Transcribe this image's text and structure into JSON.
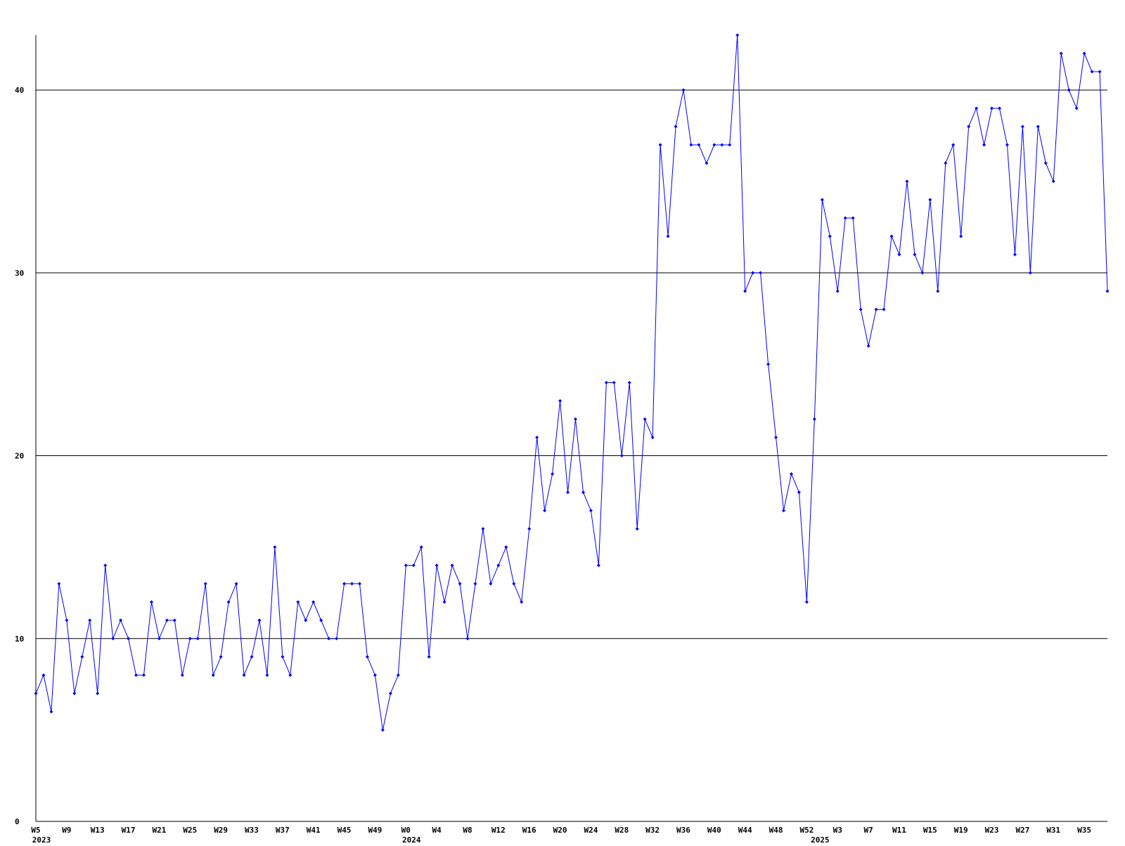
{
  "chart_data": {
    "type": "line",
    "categories": [
      "W5",
      null,
      null,
      null,
      "W9",
      null,
      null,
      null,
      "W13",
      null,
      null,
      null,
      "W17",
      null,
      null,
      null,
      "W21",
      null,
      null,
      null,
      "W25",
      null,
      null,
      null,
      "W29",
      null,
      null,
      null,
      "W33",
      null,
      null,
      null,
      "W37",
      null,
      null,
      null,
      "W41",
      null,
      null,
      null,
      "W45",
      null,
      null,
      null,
      "W49",
      null,
      null,
      null,
      "W0",
      null,
      null,
      null,
      "W4",
      null,
      null,
      null,
      "W8",
      null,
      null,
      null,
      "W12",
      null,
      null,
      null,
      "W16",
      null,
      null,
      null,
      "W20",
      null,
      null,
      null,
      "W24",
      null,
      null,
      null,
      "W28",
      null,
      null,
      null,
      "W32",
      null,
      null,
      null,
      "W36",
      null,
      null,
      null,
      "W40",
      null,
      null,
      null,
      "W44",
      null,
      null,
      null,
      "W48",
      null,
      null,
      null,
      "W52",
      null,
      null,
      null,
      "W3",
      null,
      null,
      null,
      "W7",
      null,
      null,
      null,
      "W11",
      null,
      null,
      null,
      "W15",
      null,
      null,
      null,
      "W19",
      null,
      null,
      null,
      "W23",
      null,
      null,
      null,
      "W27",
      null,
      null,
      null,
      "W31",
      null,
      null,
      null,
      "W35",
      null,
      null,
      null
    ],
    "category_years": [
      "2023",
      null,
      null,
      null,
      null,
      null,
      null,
      null,
      null,
      null,
      null,
      null,
      null,
      null,
      null,
      null,
      null,
      null,
      null,
      null,
      null,
      null,
      null,
      null,
      null,
      null,
      null,
      null,
      null,
      null,
      null,
      null,
      null,
      null,
      null,
      null,
      null,
      null,
      null,
      null,
      null,
      null,
      null,
      null,
      null,
      null,
      null,
      null,
      "2024",
      null,
      null,
      null,
      null,
      null,
      null,
      null,
      null,
      null,
      null,
      null,
      null,
      null,
      null,
      null,
      null,
      null,
      null,
      null,
      null,
      null,
      null,
      null,
      null,
      null,
      null,
      null,
      null,
      null,
      null,
      null,
      null,
      null,
      null,
      null,
      null,
      null,
      null,
      null,
      null,
      null,
      null,
      null,
      null,
      null,
      null,
      null,
      null,
      null,
      null,
      null,
      null,
      "2025",
      null,
      null,
      null,
      null,
      null,
      null,
      null,
      null,
      null,
      null,
      null,
      null,
      null,
      null,
      null,
      null,
      null,
      null,
      null,
      null,
      null,
      null,
      null,
      null,
      null,
      null,
      null,
      null,
      null,
      null,
      null,
      null,
      null,
      null,
      null,
      null,
      null,
      null
    ],
    "series": [
      {
        "color": "#0000ff",
        "values": [
          7,
          8,
          6,
          13,
          11,
          7,
          9,
          11,
          7,
          14,
          10,
          11,
          10,
          8,
          8,
          12,
          10,
          11,
          11,
          8,
          10,
          10,
          13,
          8,
          9,
          12,
          13,
          8,
          9,
          11,
          8,
          15,
          9,
          8,
          12,
          11,
          12,
          11,
          10,
          10,
          13,
          13,
          13,
          9,
          8,
          5,
          7,
          8,
          14,
          14,
          15,
          9,
          14,
          12,
          14,
          13,
          10,
          13,
          16,
          13,
          14,
          15,
          13,
          12,
          16,
          21,
          17,
          19,
          23,
          18,
          22,
          18,
          17,
          14,
          24,
          24,
          20,
          24,
          16,
          22,
          21,
          37,
          32,
          38,
          40,
          37,
          37,
          36,
          37,
          37,
          37,
          43,
          29,
          30,
          30,
          25,
          21,
          17,
          19,
          18,
          12,
          22,
          34,
          32,
          29,
          33,
          33,
          28,
          26,
          28,
          28,
          32,
          31,
          35,
          31,
          30,
          34,
          29,
          36,
          37,
          32,
          38,
          39,
          37,
          39,
          39,
          37,
          31,
          38,
          30,
          38,
          36,
          35,
          42,
          40,
          39,
          42,
          41,
          41,
          29
        ]
      }
    ],
    "ylim": [
      0,
      43
    ],
    "yticks": [
      0,
      10,
      20,
      30,
      40
    ],
    "grid": true
  }
}
